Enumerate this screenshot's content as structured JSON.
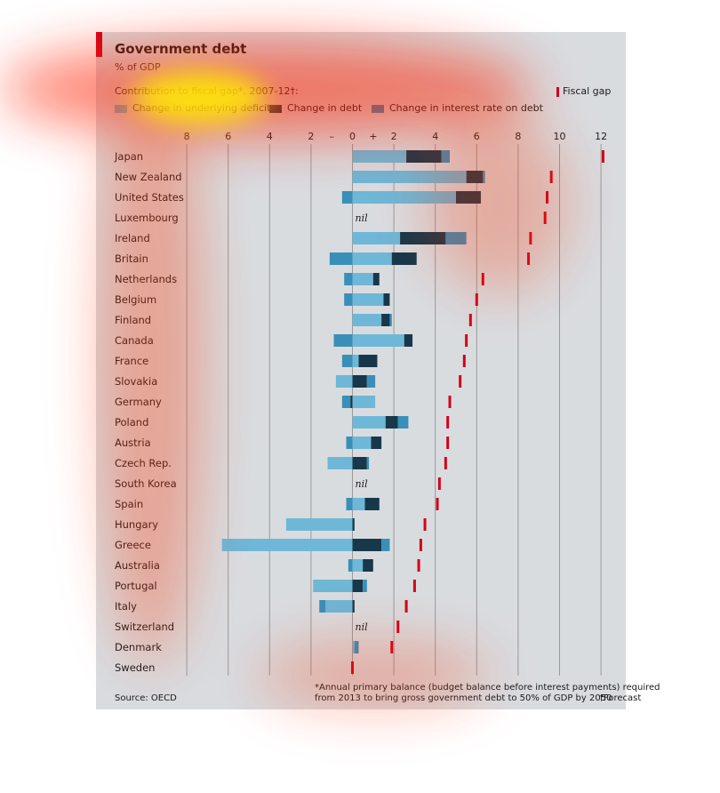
{
  "header": {
    "title": "Government debt",
    "subtitle": "% of GDP",
    "contrib_label": "Contribution to fiscal gap*, 2007-12†:",
    "fiscal_gap_label": "Fiscal gap"
  },
  "legend": [
    {
      "label": "Change in underlying deficit",
      "color": "#6fb7d6"
    },
    {
      "label": "Change in debt",
      "color": "#17384b"
    },
    {
      "label": "Change in interest rate on debt",
      "color": "#3a8fb8"
    }
  ],
  "footer": {
    "source": "Source: OECD",
    "note_line1": "*Annual primary balance (budget balance before interest payments) required",
    "note_line2": "from 2013 to bring gross government debt to 50% of GDP by 2050",
    "note_line3": "†Forecast"
  },
  "colors": {
    "deficit": "#6fb7d6",
    "debt": "#17384b",
    "interest": "#3a8fb8",
    "fiscal_gap": "#d0021b",
    "grid": "#9a9a9a",
    "background": "#d9dcdf"
  },
  "chart_data": {
    "type": "bar",
    "orientation": "horizontal-stacked",
    "title": "Government debt",
    "subtitle": "% of GDP",
    "x_ticks": [
      "8",
      "6",
      "4",
      "2",
      "–",
      "0",
      "+",
      "2",
      "4",
      "6",
      "8",
      "10",
      "12"
    ],
    "xlim": [
      -8,
      12
    ],
    "grid": true,
    "legend_position": "top",
    "nil_label": "nil",
    "categories": [
      "Japan",
      "New Zealand",
      "United States",
      "Luxembourg",
      "Ireland",
      "Britain",
      "Netherlands",
      "Belgium",
      "Finland",
      "Canada",
      "France",
      "Slovakia",
      "Germany",
      "Poland",
      "Austria",
      "Czech Rep.",
      "South Korea",
      "Spain",
      "Hungary",
      "Greece",
      "Australia",
      "Portugal",
      "Italy",
      "Switzerland",
      "Denmark",
      "Sweden"
    ],
    "rows": [
      {
        "name": "Japan",
        "segments": [
          {
            "s": "deficit",
            "v": 2.6
          },
          {
            "s": "debt",
            "v": 1.7
          },
          {
            "s": "interest",
            "v": 0.4
          }
        ],
        "fiscal_gap": 12.1
      },
      {
        "name": "New Zealand",
        "segments": [
          {
            "s": "deficit",
            "v": 5.5
          },
          {
            "s": "debt",
            "v": 0.8
          },
          {
            "s": "interest",
            "v": 0.1
          }
        ],
        "fiscal_gap": 9.6
      },
      {
        "name": "United States",
        "segments": [
          {
            "s": "interest",
            "v": -0.5
          },
          {
            "s": "deficit",
            "v": 5.0
          },
          {
            "s": "debt",
            "v": 1.2
          }
        ],
        "fiscal_gap": 9.4
      },
      {
        "name": "Luxembourg",
        "segments": [],
        "nil": true,
        "fiscal_gap": 9.3
      },
      {
        "name": "Ireland",
        "segments": [
          {
            "s": "deficit",
            "v": 2.3
          },
          {
            "s": "debt",
            "v": 2.2
          },
          {
            "s": "interest",
            "v": 1.0
          }
        ],
        "fiscal_gap": 8.6
      },
      {
        "name": "Britain",
        "segments": [
          {
            "s": "interest",
            "v": -1.1
          },
          {
            "s": "deficit",
            "v": 1.9
          },
          {
            "s": "debt",
            "v": 1.2
          }
        ],
        "fiscal_gap": 8.5
      },
      {
        "name": "Netherlands",
        "segments": [
          {
            "s": "interest",
            "v": -0.4
          },
          {
            "s": "deficit",
            "v": 1.0
          },
          {
            "s": "debt",
            "v": 0.3
          }
        ],
        "fiscal_gap": 6.3
      },
      {
        "name": "Belgium",
        "segments": [
          {
            "s": "interest",
            "v": -0.4
          },
          {
            "s": "deficit",
            "v": 1.5
          },
          {
            "s": "debt",
            "v": 0.3
          }
        ],
        "fiscal_gap": 6.0
      },
      {
        "name": "Finland",
        "segments": [
          {
            "s": "deficit",
            "v": 1.4
          },
          {
            "s": "debt",
            "v": 0.4
          },
          {
            "s": "interest",
            "v": 0.1
          }
        ],
        "fiscal_gap": 5.7
      },
      {
        "name": "Canada",
        "segments": [
          {
            "s": "interest",
            "v": -0.9
          },
          {
            "s": "deficit",
            "v": 2.5
          },
          {
            "s": "debt",
            "v": 0.4
          }
        ],
        "fiscal_gap": 5.5
      },
      {
        "name": "France",
        "segments": [
          {
            "s": "interest",
            "v": -0.5
          },
          {
            "s": "deficit",
            "v": 0.3
          },
          {
            "s": "debt",
            "v": 0.9
          }
        ],
        "fiscal_gap": 5.4
      },
      {
        "name": "Slovakia",
        "segments": [
          {
            "s": "deficit",
            "v": -0.8
          },
          {
            "s": "debt",
            "v": 0.7
          },
          {
            "s": "interest",
            "v": 0.4
          }
        ],
        "fiscal_gap": 5.2
      },
      {
        "name": "Germany",
        "segments": [
          {
            "s": "debt",
            "v": -0.1
          },
          {
            "s": "interest",
            "v": -0.4
          },
          {
            "s": "deficit",
            "v": 1.1
          }
        ],
        "fiscal_gap": 4.7
      },
      {
        "name": "Poland",
        "segments": [
          {
            "s": "deficit",
            "v": 1.6
          },
          {
            "s": "debt",
            "v": 0.6
          },
          {
            "s": "interest",
            "v": 0.5
          }
        ],
        "fiscal_gap": 4.6
      },
      {
        "name": "Austria",
        "segments": [
          {
            "s": "interest",
            "v": -0.3
          },
          {
            "s": "deficit",
            "v": 0.9
          },
          {
            "s": "debt",
            "v": 0.5
          }
        ],
        "fiscal_gap": 4.6
      },
      {
        "name": "Czech Rep.",
        "segments": [
          {
            "s": "deficit",
            "v": -1.2
          },
          {
            "s": "debt",
            "v": 0.7
          },
          {
            "s": "interest",
            "v": 0.1
          }
        ],
        "fiscal_gap": 4.5
      },
      {
        "name": "South Korea",
        "segments": [],
        "nil": true,
        "fiscal_gap": 4.2
      },
      {
        "name": "Spain",
        "segments": [
          {
            "s": "interest",
            "v": -0.3
          },
          {
            "s": "deficit",
            "v": 0.6
          },
          {
            "s": "debt",
            "v": 0.7
          }
        ],
        "fiscal_gap": 4.1
      },
      {
        "name": "Hungary",
        "segments": [
          {
            "s": "deficit",
            "v": -3.2
          },
          {
            "s": "debt",
            "v": 0.1
          }
        ],
        "fiscal_gap": 3.5
      },
      {
        "name": "Greece",
        "segments": [
          {
            "s": "deficit",
            "v": -6.3
          },
          {
            "s": "debt",
            "v": 1.4
          },
          {
            "s": "interest",
            "v": 0.4
          }
        ],
        "fiscal_gap": 3.3
      },
      {
        "name": "Australia",
        "segments": [
          {
            "s": "interest",
            "v": -0.2
          },
          {
            "s": "deficit",
            "v": 0.5
          },
          {
            "s": "debt",
            "v": 0.5
          }
        ],
        "fiscal_gap": 3.2
      },
      {
        "name": "Portugal",
        "segments": [
          {
            "s": "deficit",
            "v": -1.9
          },
          {
            "s": "debt",
            "v": 0.5
          },
          {
            "s": "interest",
            "v": 0.2
          }
        ],
        "fiscal_gap": 3.0
      },
      {
        "name": "Italy",
        "segments": [
          {
            "s": "deficit",
            "v": -1.3
          },
          {
            "s": "interest",
            "v": -0.3
          },
          {
            "s": "debt",
            "v": 0.1
          }
        ],
        "fiscal_gap": 2.6
      },
      {
        "name": "Switzerland",
        "segments": [],
        "nil": true,
        "fiscal_gap": 2.2
      },
      {
        "name": "Denmark",
        "segments": [
          {
            "s": "deficit",
            "v": 0.1
          },
          {
            "s": "interest",
            "v": 0.2
          }
        ],
        "fiscal_gap": 1.9
      },
      {
        "name": "Sweden",
        "segments": [],
        "fiscal_gap": 0.0
      }
    ]
  }
}
